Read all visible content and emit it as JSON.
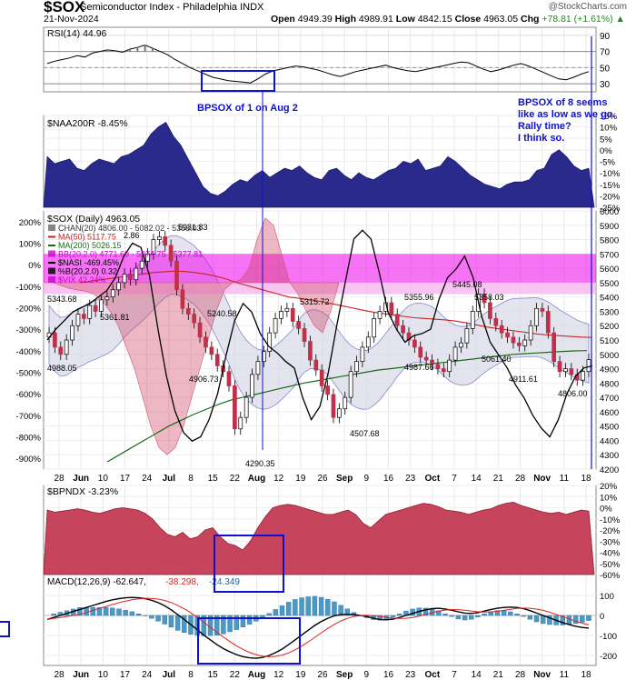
{
  "header": {
    "symbol": "$SOX",
    "name": "Semiconductor Index - Philadelphia INDX",
    "date": "21-Nov-2024",
    "open_label": "Open",
    "open": "4949.39",
    "high_label": "High",
    "high": "4989.91",
    "low_label": "Low",
    "low": "4842.15",
    "close_label": "Close",
    "close": "4963.05",
    "chg_label": "Chg",
    "chg": "+78.81 (+1.61%)",
    "credit": "@StockCharts.com"
  },
  "colors": {
    "navy": "#2a2a8c",
    "crimson": "#c0304a",
    "pink_fill": "#cc3355",
    "magenta": "#ee00ee",
    "gray_band": "#d8d8e8",
    "annotation_blue": "#1010d0",
    "green_ma": "#1a6a1a",
    "red_ma": "#cc2222"
  },
  "annotations": {
    "left_note": "BPSOX of 1 on Aug 2",
    "right_note": [
      "BPSOX of 8 seems",
      "like as low as we go.",
      "Rally time?",
      "I think so."
    ]
  },
  "chart_data": [
    {
      "type": "line",
      "panel": "rsi",
      "title": "RSI(14) 44.96",
      "ylim": [
        20,
        100
      ],
      "y_ticks": [
        90,
        70,
        50,
        30
      ],
      "reference_lines": [
        70,
        30
      ],
      "x_ticks": [
        "28",
        "Jun",
        "10",
        "17",
        "24",
        "Jul",
        "8",
        "15",
        "22",
        "Aug",
        "12",
        "19",
        "26",
        "Sep",
        "9",
        "16",
        "23",
        "Oct",
        "7",
        "14",
        "21",
        "28",
        "Nov",
        "11",
        "18"
      ],
      "values": [
        55,
        58,
        60,
        62,
        65,
        63,
        68,
        70,
        72,
        71,
        69,
        73,
        75,
        78,
        74,
        70,
        66,
        60,
        55,
        50,
        46,
        42,
        38,
        36,
        34,
        33,
        32,
        31,
        36,
        42,
        46,
        48,
        50,
        52,
        51,
        49,
        47,
        44,
        41,
        39,
        42,
        45,
        47,
        49,
        51,
        53,
        50,
        48,
        46,
        45,
        47,
        49,
        51,
        53,
        55,
        57,
        56,
        52,
        48,
        45,
        47,
        50,
        53,
        55,
        52,
        48,
        44,
        40,
        36,
        35,
        38,
        42,
        45
      ]
    },
    {
      "type": "area",
      "panel": "naa200r",
      "title": "$NAA200R -8.45%",
      "ylim": [
        -25,
        15
      ],
      "y_ticks": [
        "15%",
        "10%",
        "5%",
        "0%",
        "-5%",
        "-10%",
        "-15%",
        "-20%",
        "-25%"
      ],
      "values": [
        -3,
        -6,
        -5,
        -4,
        -8,
        -9,
        -6,
        -4,
        -5,
        -6,
        -3,
        -2,
        0,
        2,
        7,
        10,
        12,
        6,
        2,
        -4,
        -10,
        -16,
        -19,
        -20,
        -18,
        -15,
        -13,
        -14,
        -11,
        -9,
        -12,
        -10,
        -8,
        -9,
        -7,
        -10,
        -12,
        -13,
        -9,
        -8,
        -11,
        -13,
        -10,
        -12,
        -13,
        -11,
        -9,
        -8,
        -5,
        -6,
        -4,
        -9,
        -8,
        -7,
        -3,
        -5,
        -8,
        -11,
        -13,
        -15,
        -16,
        -17,
        -15,
        -14,
        -14,
        -13,
        -9,
        -8,
        -2,
        0,
        -3,
        -7,
        -9,
        -8
      ]
    },
    {
      "type": "candlestick",
      "panel": "price",
      "title": "$SOX (Daily) 4963.05",
      "ylim": [
        4200,
        6000
      ],
      "y_ticks_right": [
        6000,
        5900,
        5800,
        5700,
        5600,
        5500,
        5400,
        5300,
        5200,
        5100,
        5000,
        4900,
        4800,
        4700,
        4600,
        4500,
        4400,
        4300,
        4200
      ],
      "y_ticks_left": [
        "200%",
        "100%",
        "0%",
        "-100%",
        "-200%",
        "-300%",
        "-400%",
        "-500%",
        "-600%",
        "-700%",
        "-800%",
        "-900%"
      ],
      "legend": [
        "CHAN(20) 4806.00 - 5082.02 - 5358.03",
        "MA(50) 5117.75",
        "MA(200) 5026.15",
        "BB(20,2.0) 4771.69 - 5074.75 - 5377.81",
        "$NASI -469.45%",
        "%B(20,2.0) 0.32",
        "$VIX 42.24%"
      ],
      "labels": [
        "5343.68",
        "5361.81",
        "4988.05",
        "5240.58",
        "4906.73",
        "4290.35",
        "5931.83",
        "5315.72",
        "4507.68",
        "5355.96",
        "5445.08",
        "4987.66",
        "5358.03",
        "5061.40",
        "4911.61",
        "4806.00",
        "2.86"
      ],
      "closes": [
        5150,
        5050,
        5000,
        5100,
        5200,
        5280,
        5250,
        5340,
        5300,
        5380,
        5400,
        5450,
        5500,
        5560,
        5520,
        5600,
        5650,
        5700,
        5800,
        5820,
        5760,
        5650,
        5450,
        5320,
        5280,
        5220,
        5120,
        5050,
        5000,
        4920,
        4880,
        4780,
        4480,
        4560,
        4700,
        4860,
        4950,
        5020,
        5150,
        5250,
        5300,
        5320,
        5230,
        5180,
        5090,
        4960,
        4890,
        4780,
        4720,
        4560,
        4620,
        4700,
        4880,
        4950,
        5050,
        5120,
        5250,
        5300,
        5360,
        5280,
        5200,
        5150,
        5100,
        5050,
        4980,
        4960,
        4930,
        4900,
        4880,
        4960,
        5050,
        5080,
        5180,
        5300,
        5420,
        5360,
        5250,
        5200,
        5150,
        5120,
        5080,
        5060,
        5100,
        5200,
        5320,
        5300,
        5150,
        4950,
        4880,
        4900,
        4860,
        4820,
        4880,
        4963
      ],
      "ma50": [
        5500,
        5510,
        5520,
        5530,
        5540,
        5550,
        5560,
        5570,
        5575,
        5580,
        5578,
        5570,
        5560,
        5545,
        5525,
        5500,
        5480,
        5460,
        5440,
        5420,
        5400,
        5390,
        5380,
        5370,
        5355,
        5340,
        5325,
        5310,
        5295,
        5285,
        5275,
        5265,
        5255,
        5250,
        5245,
        5240,
        5232,
        5220,
        5205,
        5190,
        5180,
        5170,
        5160,
        5150,
        5140,
        5135,
        5130,
        5125,
        5120,
        5118
      ],
      "ma200": [
        4250,
        4300,
        4350,
        4400,
        4450,
        4500,
        4540,
        4580,
        4615,
        4650,
        4680,
        4700,
        4720,
        4740,
        4760,
        4780,
        4800,
        4815,
        4830,
        4845,
        4860,
        4875,
        4890,
        4900,
        4910,
        4920,
        4930,
        4940,
        4950,
        4960,
        4970,
        4980,
        4990,
        5000,
        5005,
        5010,
        5015,
        5020,
        5024,
        5026
      ],
      "nasi": [
        -350,
        -300,
        -260,
        -220,
        -200,
        -180,
        -150,
        -120,
        -60,
        40,
        100,
        80,
        -50,
        -300,
        -520,
        -680,
        -780,
        -820,
        -800,
        -720,
        -600,
        -420,
        -260,
        -180,
        -220,
        -320,
        -380,
        -410,
        -450,
        -480,
        -620,
        -720,
        -660,
        -500,
        -280,
        -80,
        120,
        160,
        120,
        -40,
        -220,
        -300,
        -360,
        -330,
        -320,
        -300,
        -160,
        -60,
        -20,
        40,
        -60,
        -240,
        -360,
        -420,
        -480,
        -560,
        -620,
        -700,
        -760,
        -800,
        -720,
        -600,
        -520,
        -480,
        -470
      ]
    },
    {
      "type": "area",
      "panel": "bpndx",
      "title": "$BPNDX -3.23%",
      "ylim": [
        -60,
        20
      ],
      "y_ticks": [
        "20%",
        "10%",
        "0%",
        "-10%",
        "-20%",
        "-30%",
        "-40%",
        "-50%",
        "-60%"
      ],
      "values": [
        -2,
        -4,
        -3,
        -2,
        -1,
        -2,
        -4,
        -5,
        -3,
        -1,
        0,
        -1,
        -2,
        -5,
        -10,
        -18,
        -24,
        -26,
        -22,
        -28,
        -26,
        -20,
        -18,
        -26,
        -32,
        -34,
        -38,
        -30,
        -18,
        -8,
        0,
        2,
        3,
        2,
        0,
        -2,
        -4,
        -6,
        -6,
        -4,
        -2,
        -6,
        -14,
        -18,
        -12,
        -6,
        -4,
        -2,
        0,
        2,
        4,
        3,
        1,
        -2,
        -3,
        -4,
        -6,
        -4,
        -2,
        -1,
        2,
        4,
        5,
        2,
        0,
        -2,
        -4,
        -5,
        -4,
        -6,
        -4,
        -2,
        -3
      ]
    },
    {
      "type": "macd",
      "panel": "macd",
      "title": "MACD(12,26,9) -62.647, -38.298, -24.349",
      "values_label": [
        "-62.647",
        "-38.298",
        "-24.349"
      ],
      "ylim": [
        -250,
        150
      ],
      "y_ticks": [
        100,
        0,
        -100,
        -200
      ],
      "macd": [
        -20,
        -10,
        0,
        10,
        20,
        30,
        40,
        50,
        60,
        70,
        78,
        84,
        88,
        90,
        88,
        84,
        76,
        64,
        48,
        28,
        4,
        -20,
        -46,
        -72,
        -98,
        -122,
        -146,
        -166,
        -182,
        -196,
        -206,
        -212,
        -214,
        -210,
        -200,
        -186,
        -168,
        -146,
        -122,
        -98,
        -74,
        -50,
        -30,
        -14,
        -2,
        4,
        6,
        4,
        0,
        -6,
        -14,
        -20,
        -22,
        -18,
        -10,
        0,
        10,
        20,
        28,
        34,
        36,
        32,
        26,
        18,
        12,
        10,
        14,
        22,
        30,
        36,
        40,
        42,
        40,
        34,
        24,
        12,
        0,
        -12,
        -24,
        -36,
        -46,
        -54,
        -60,
        -63
      ]
    }
  ]
}
